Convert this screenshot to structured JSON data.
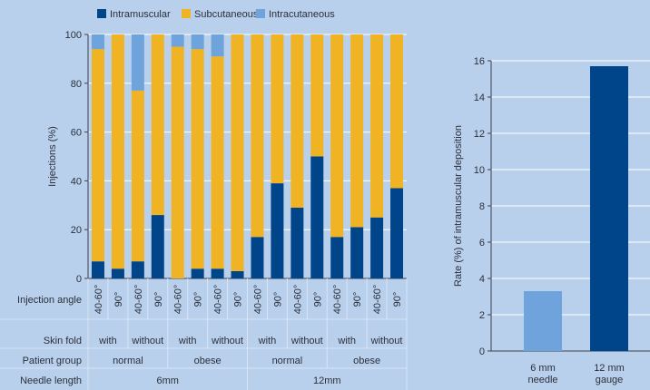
{
  "colors": {
    "background": "#b9d0ec",
    "intramuscular": "#00458a",
    "subcutaneous": "#f0b323",
    "intracutaneous": "#6fa3dc",
    "gridline": "#ffffff",
    "axis": "#3a4150",
    "separator": "#d8e5f5"
  },
  "chart_data": [
    {
      "type": "bar",
      "stacked": true,
      "ylabel": "Injections (%)",
      "ylim": [
        0,
        100
      ],
      "yticks": [
        0,
        20,
        40,
        60,
        80,
        100
      ],
      "grid": true,
      "legend": {
        "placement": "top"
      },
      "series": [
        {
          "name": "Intramuscular",
          "color": "#00458a",
          "values": [
            7,
            4,
            7,
            26,
            0,
            4,
            4,
            3,
            17,
            39,
            29,
            50,
            17,
            21,
            25,
            37
          ]
        },
        {
          "name": "Subcutaneous",
          "color": "#f0b323",
          "values": [
            87,
            96,
            70,
            74,
            95,
            90,
            87,
            97,
            83,
            61,
            71,
            50,
            83,
            79,
            75,
            63
          ]
        },
        {
          "name": "Intracutaneous",
          "color": "#6fa3dc",
          "values": [
            6,
            0,
            23,
            0,
            5,
            6,
            9,
            0,
            0,
            0,
            0,
            0,
            0,
            0,
            0,
            0
          ]
        }
      ],
      "row_labels": {
        "injection_angle": "Injection angle",
        "skin_fold": "Skin fold",
        "patient_group": "Patient group",
        "needle_length": "Needle length"
      },
      "injection_angles": [
        "40-60°",
        "90°",
        "40-60°",
        "90°",
        "40-60°",
        "90°",
        "40-60°",
        "90°",
        "40-60°",
        "90°",
        "40-60°",
        "90°",
        "40-60°",
        "90°",
        "40-60°",
        "90°"
      ],
      "skin_fold": [
        "with",
        "without",
        "with",
        "without",
        "with",
        "without",
        "with",
        "without"
      ],
      "patient_group": [
        "normal",
        "obese",
        "normal",
        "obese"
      ],
      "needle_length": [
        "6mm",
        "12mm"
      ]
    },
    {
      "type": "bar",
      "ylabel": "Rate (%) of intramuscular deposition",
      "ylim": [
        0,
        16
      ],
      "yticks": [
        0,
        2,
        4,
        6,
        8,
        10,
        12,
        14,
        16
      ],
      "grid": true,
      "categories": [
        {
          "line1": "6 mm",
          "line2": "needle"
        },
        {
          "line1": "12 mm",
          "line2": "gauge"
        }
      ],
      "values": [
        3.3,
        15.7
      ],
      "colors": [
        "#6fa3dc",
        "#00458a"
      ]
    }
  ]
}
